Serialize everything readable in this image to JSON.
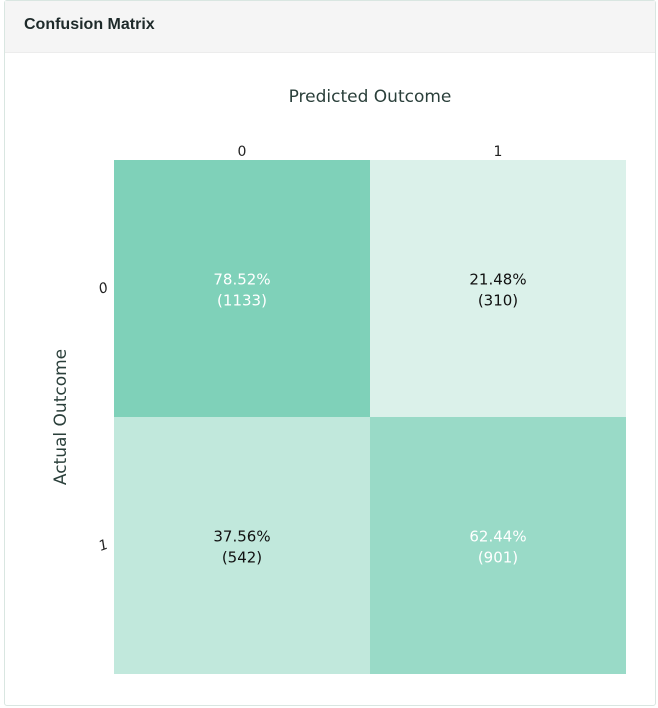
{
  "panel": {
    "title": "Confusion Matrix"
  },
  "chart_data": {
    "type": "heatmap",
    "x_title": "Predicted Outcome",
    "y_title": "Actual Outcome",
    "x_categories": [
      "0",
      "1"
    ],
    "y_categories": [
      "0",
      "1"
    ],
    "cells": [
      {
        "row": 0,
        "col": 0,
        "percent": "78.52%",
        "count": "(1133)",
        "value": 1133
      },
      {
        "row": 0,
        "col": 1,
        "percent": "21.48%",
        "count": "(310)",
        "value": 310
      },
      {
        "row": 1,
        "col": 0,
        "percent": "37.56%",
        "count": "(542)",
        "value": 542
      },
      {
        "row": 1,
        "col": 1,
        "percent": "62.44%",
        "count": "(901)",
        "value": 901
      }
    ],
    "colors": {
      "high": "#7fd1b9",
      "low": "#dbf1ea",
      "label_light": "#ffffff",
      "label_dark": "#111111"
    }
  }
}
